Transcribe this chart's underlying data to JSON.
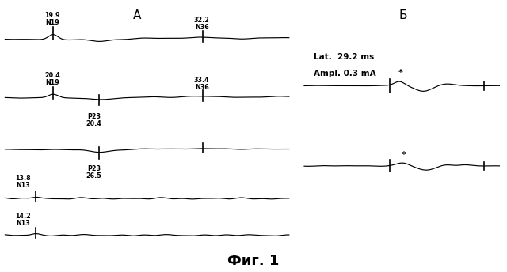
{
  "title": "Фиг. 1",
  "label_A": "А",
  "label_B": "Б",
  "background_color": "#ffffff",
  "line_color": "#000000",
  "lat_text": "Lat.  29.2 ms",
  "ampl_text": "Ampl. 0.3 mA",
  "centers_A": [
    0.855,
    0.64,
    0.45,
    0.27,
    0.135
  ],
  "centers_B": [
    0.685,
    0.39
  ],
  "figsize": [
    6.4,
    3.44
  ],
  "dpi": 100
}
